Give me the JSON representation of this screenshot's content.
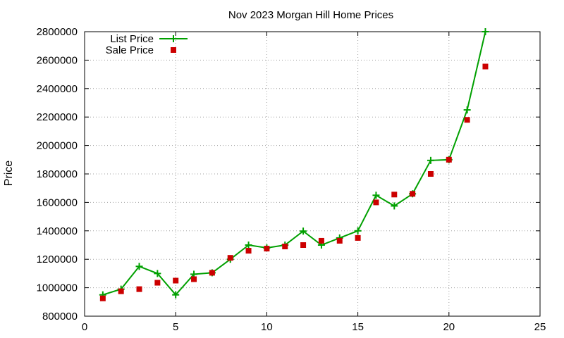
{
  "chart_data": {
    "type": "line",
    "title": "Nov 2023 Morgan Hill Home Prices",
    "xlabel": "",
    "ylabel": "Price",
    "xlim": [
      0,
      25
    ],
    "ylim": [
      800000,
      2800000
    ],
    "xticks": [
      0,
      5,
      10,
      15,
      20,
      25
    ],
    "yticks": [
      800000,
      1000000,
      1200000,
      1400000,
      1600000,
      1800000,
      2000000,
      2200000,
      2400000,
      2600000,
      2800000
    ],
    "grid": true,
    "legend_position": "top-left",
    "series": [
      {
        "name": "List Price",
        "style": "linespoints",
        "marker": "plus",
        "color": "#00a000",
        "x": [
          1,
          2,
          3,
          4,
          5,
          6,
          7,
          8,
          9,
          10,
          11,
          12,
          13,
          14,
          15,
          16,
          17,
          18,
          19,
          20,
          21,
          22
        ],
        "values": [
          950000,
          990000,
          1150000,
          1100000,
          950000,
          1095000,
          1105000,
          1200000,
          1300000,
          1280000,
          1300000,
          1398000,
          1300000,
          1350000,
          1400000,
          1650000,
          1575000,
          1660000,
          1895000,
          1900000,
          2250000,
          2800000
        ]
      },
      {
        "name": "Sale Price",
        "style": "points",
        "marker": "square",
        "color": "#cc0000",
        "x": [
          1,
          2,
          3,
          4,
          5,
          6,
          7,
          8,
          9,
          10,
          11,
          12,
          13,
          14,
          15,
          16,
          17,
          18,
          19,
          20,
          21,
          22
        ],
        "values": [
          925000,
          975000,
          990000,
          1035000,
          1050000,
          1060000,
          1105000,
          1210000,
          1260000,
          1275000,
          1290000,
          1300000,
          1330000,
          1330000,
          1350000,
          1600000,
          1655000,
          1660000,
          1800000,
          1900000,
          2180000,
          2555000
        ]
      }
    ]
  }
}
